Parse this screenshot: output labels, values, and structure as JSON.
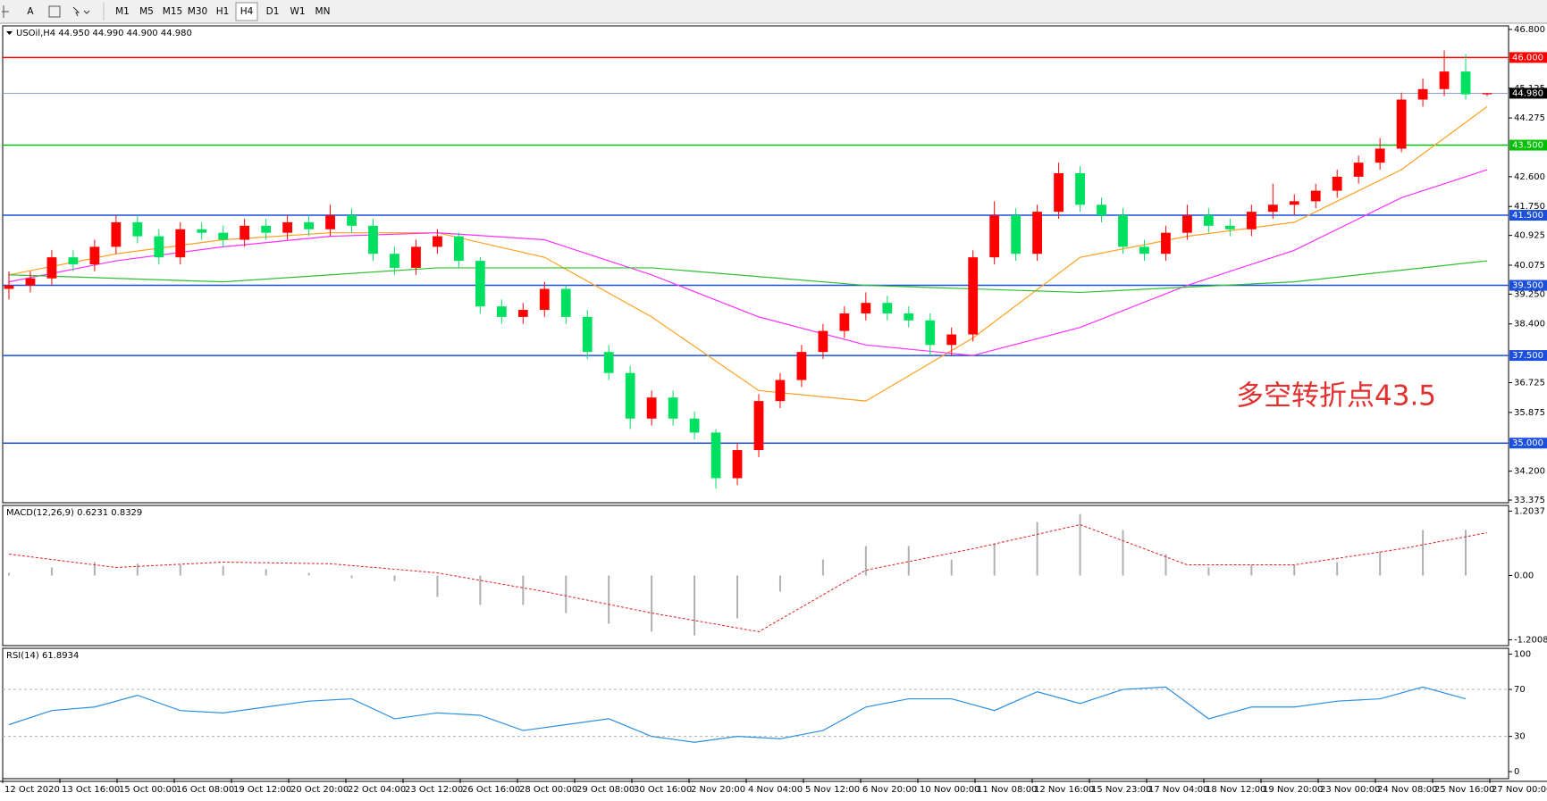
{
  "toolbar": {
    "font_button": "A",
    "timeframes": [
      "M1",
      "M5",
      "M15",
      "M30",
      "H1",
      "H4",
      "D1",
      "W1",
      "MN"
    ],
    "active": "H4"
  },
  "time_axis": {
    "labels": [
      "12 Oct 2020",
      "13 Oct 16:00",
      "15 Oct 00:00",
      "16 Oct 08:00",
      "19 Oct 12:00",
      "20 Oct 20:00",
      "22 Oct 04:00",
      "23 Oct 12:00",
      "26 Oct 16:00",
      "28 Oct 00:00",
      "29 Oct 08:00",
      "30 Oct 16:00",
      "2 Nov 20:00",
      "4 Nov 04:00",
      "5 Nov 12:00",
      "6 Nov 20:00",
      "10 Nov 00:00",
      "11 Nov 08:00",
      "12 Nov 16:00",
      "15 Nov 23:00",
      "17 Nov 04:00",
      "18 Nov 12:00",
      "19 Nov 20:00",
      "23 Nov 00:00",
      "24 Nov 08:00",
      "25 Nov 16:00",
      "27 Nov 00:00"
    ]
  },
  "chart_data": [
    {
      "type": "candlestick",
      "title": "USOil,H4 44.950 44.990 44.900 44.980",
      "up_color": "#ff0000",
      "down_color": "#00e060",
      "xlim": [
        0,
        69
      ],
      "ohlc": [
        [
          39.4,
          39.9,
          39.1,
          39.5
        ],
        [
          39.5,
          39.9,
          39.3,
          39.7
        ],
        [
          39.7,
          40.5,
          39.5,
          40.3
        ],
        [
          40.3,
          40.5,
          39.9,
          40.1
        ],
        [
          40.1,
          40.8,
          39.9,
          40.6
        ],
        [
          40.6,
          41.5,
          40.4,
          41.3
        ],
        [
          41.3,
          41.5,
          40.7,
          40.9
        ],
        [
          40.9,
          41.1,
          40.1,
          40.3
        ],
        [
          40.3,
          41.3,
          40.1,
          41.1
        ],
        [
          41.1,
          41.3,
          40.8,
          41.0
        ],
        [
          41.0,
          41.2,
          40.6,
          40.8
        ],
        [
          40.8,
          41.4,
          40.6,
          41.2
        ],
        [
          41.2,
          41.4,
          40.8,
          41.0
        ],
        [
          41.0,
          41.5,
          40.8,
          41.3
        ],
        [
          41.3,
          41.5,
          40.9,
          41.1
        ],
        [
          41.1,
          41.8,
          40.9,
          41.5
        ],
        [
          41.5,
          41.7,
          41.0,
          41.2
        ],
        [
          41.2,
          41.4,
          40.2,
          40.4
        ],
        [
          40.4,
          40.6,
          39.8,
          40.0
        ],
        [
          40.0,
          40.8,
          39.8,
          40.6
        ],
        [
          40.6,
          41.1,
          40.4,
          40.9
        ],
        [
          40.9,
          41.0,
          40.0,
          40.2
        ],
        [
          40.2,
          40.3,
          38.7,
          38.9
        ],
        [
          38.9,
          39.1,
          38.4,
          38.6
        ],
        [
          38.6,
          39.0,
          38.4,
          38.8
        ],
        [
          38.8,
          39.6,
          38.6,
          39.4
        ],
        [
          39.4,
          39.5,
          38.4,
          38.6
        ],
        [
          38.6,
          38.8,
          37.4,
          37.6
        ],
        [
          37.6,
          37.8,
          36.8,
          37.0
        ],
        [
          37.0,
          37.2,
          35.4,
          35.7
        ],
        [
          35.7,
          36.5,
          35.5,
          36.3
        ],
        [
          36.3,
          36.5,
          35.5,
          35.7
        ],
        [
          35.7,
          35.9,
          35.1,
          35.3
        ],
        [
          35.3,
          35.4,
          33.7,
          34.0
        ],
        [
          34.0,
          35.0,
          33.8,
          34.8
        ],
        [
          34.8,
          36.4,
          34.6,
          36.2
        ],
        [
          36.2,
          37.0,
          36.0,
          36.8
        ],
        [
          36.8,
          37.8,
          36.6,
          37.6
        ],
        [
          37.6,
          38.4,
          37.4,
          38.2
        ],
        [
          38.2,
          38.9,
          38.0,
          38.7
        ],
        [
          38.7,
          39.3,
          38.5,
          39.0
        ],
        [
          39.0,
          39.2,
          38.5,
          38.7
        ],
        [
          38.7,
          38.9,
          38.3,
          38.5
        ],
        [
          38.5,
          38.7,
          37.5,
          37.8
        ],
        [
          37.8,
          38.3,
          37.5,
          38.1
        ],
        [
          38.1,
          40.5,
          37.9,
          40.3
        ],
        [
          40.3,
          41.9,
          40.1,
          41.5
        ],
        [
          41.5,
          41.7,
          40.2,
          40.4
        ],
        [
          40.4,
          41.8,
          40.2,
          41.6
        ],
        [
          41.6,
          43.0,
          41.4,
          42.7
        ],
        [
          42.7,
          42.9,
          41.6,
          41.8
        ],
        [
          41.8,
          42.0,
          41.3,
          41.5
        ],
        [
          41.5,
          41.7,
          40.4,
          40.6
        ],
        [
          40.6,
          40.8,
          40.2,
          40.4
        ],
        [
          40.4,
          41.2,
          40.2,
          41.0
        ],
        [
          41.0,
          41.8,
          40.8,
          41.5
        ],
        [
          41.5,
          41.7,
          41.0,
          41.2
        ],
        [
          41.2,
          41.4,
          40.9,
          41.1
        ],
        [
          41.1,
          41.8,
          40.9,
          41.6
        ],
        [
          41.6,
          42.4,
          41.4,
          41.8
        ],
        [
          41.8,
          42.1,
          41.5,
          41.9
        ],
        [
          41.9,
          42.4,
          41.7,
          42.2
        ],
        [
          42.2,
          42.8,
          42.0,
          42.6
        ],
        [
          42.6,
          43.2,
          42.4,
          43.0
        ],
        [
          43.0,
          43.7,
          42.8,
          43.4
        ],
        [
          43.4,
          45.0,
          43.3,
          44.8
        ],
        [
          44.8,
          45.4,
          44.6,
          45.1
        ],
        [
          45.1,
          46.2,
          44.9,
          45.6
        ],
        [
          45.6,
          46.1,
          44.8,
          44.95
        ],
        [
          44.95,
          44.99,
          44.9,
          44.98
        ]
      ],
      "series": [
        {
          "color": "#ffa020",
          "x": [
            0,
            5,
            10,
            15,
            20,
            25,
            30,
            35,
            40,
            45,
            50,
            55,
            60,
            65,
            69
          ],
          "values": [
            39.8,
            40.4,
            40.8,
            41.0,
            41.0,
            40.3,
            38.6,
            36.5,
            36.2,
            38.0,
            40.3,
            40.9,
            41.3,
            42.8,
            44.6
          ]
        },
        {
          "color": "#ff30ff",
          "x": [
            0,
            5,
            10,
            15,
            20,
            25,
            30,
            35,
            40,
            45,
            50,
            55,
            60,
            65,
            69
          ],
          "values": [
            39.6,
            40.2,
            40.6,
            40.9,
            41.0,
            40.8,
            39.8,
            38.6,
            37.8,
            37.5,
            38.3,
            39.5,
            40.5,
            42.0,
            42.8
          ]
        },
        {
          "color": "#30c030",
          "x": [
            0,
            10,
            20,
            30,
            40,
            50,
            60,
            69
          ],
          "values": [
            39.8,
            39.6,
            40.0,
            40.0,
            39.5,
            39.3,
            39.6,
            40.2
          ]
        }
      ],
      "ylim": [
        33.375,
        46.8
      ],
      "yticks": [
        {
          "value": 46.8,
          "label": "46.800"
        },
        {
          "value": 45.125,
          "label": "45.125"
        },
        {
          "value": 44.275,
          "label": "44.275"
        },
        {
          "value": 42.6,
          "label": "42.600"
        },
        {
          "value": 41.75,
          "label": "41.750"
        },
        {
          "value": 40.925,
          "label": "40.925"
        },
        {
          "value": 40.075,
          "label": "40.075"
        },
        {
          "value": 39.25,
          "label": "39.250"
        },
        {
          "value": 38.4,
          "label": "38.400"
        },
        {
          "value": 36.725,
          "label": "36.725"
        },
        {
          "value": 35.875,
          "label": "35.875"
        },
        {
          "value": 34.2,
          "label": "34.200"
        },
        {
          "value": 33.375,
          "label": "33.375"
        }
      ],
      "levels": [
        {
          "value": 46,
          "label": "46.000",
          "color": "#ff0000"
        },
        {
          "value": 43.5,
          "label": "43.500",
          "color": "#00c000"
        },
        {
          "value": 41.5,
          "label": "41.500",
          "color": "#1a4fe0"
        },
        {
          "value": 39.5,
          "label": "39.500",
          "color": "#1a4fe0"
        },
        {
          "value": 37.5,
          "label": "37.500",
          "color": "#1a4fe0"
        },
        {
          "value": 35,
          "label": "35.000",
          "color": "#1a4fe0"
        }
      ],
      "current": {
        "value": 44.98,
        "label": "44.980"
      },
      "annotation": "多空转折点43.5"
    },
    {
      "type": "macd",
      "title": "MACD(12,26,9) 0.6231 0.8329",
      "xlim": [
        0,
        69
      ],
      "histogram": {
        "color": "#b0b0b0",
        "x": [
          0,
          2,
          4,
          6,
          8,
          10,
          12,
          14,
          16,
          18,
          20,
          22,
          24,
          26,
          28,
          30,
          32,
          34,
          36,
          38,
          40,
          42,
          44,
          46,
          48,
          50,
          52,
          54,
          56,
          58,
          60,
          62,
          64,
          66,
          68
        ],
        "values": [
          0.05,
          0.15,
          0.25,
          0.22,
          0.2,
          0.18,
          0.12,
          0.05,
          -0.05,
          -0.1,
          -0.4,
          -0.55,
          -0.55,
          -0.7,
          -0.9,
          -1.05,
          -1.12,
          -0.8,
          -0.3,
          0.3,
          0.55,
          0.55,
          0.3,
          0.6,
          1.0,
          1.15,
          0.85,
          0.4,
          0.15,
          0.2,
          0.2,
          0.25,
          0.45,
          0.85,
          0.85
        ]
      },
      "signal": {
        "color": "#e02020",
        "x": [
          0,
          5,
          10,
          15,
          20,
          25,
          30,
          35,
          40,
          45,
          50,
          55,
          60,
          65,
          69
        ],
        "values": [
          0.4,
          0.15,
          0.25,
          0.22,
          0.05,
          -0.3,
          -0.7,
          -1.05,
          0.1,
          0.5,
          0.95,
          0.2,
          0.2,
          0.5,
          0.8
        ]
      },
      "ylim": [
        -1.31,
        1.31
      ],
      "yticks": [
        {
          "value": 1.2037,
          "label": "1.2037"
        },
        {
          "value": 0,
          "label": "0.00"
        },
        {
          "value": -1.2008,
          "label": "-1.2008"
        }
      ]
    },
    {
      "type": "line",
      "title": "RSI(14) 61.8934",
      "xlim": [
        0,
        69
      ],
      "color": "#2c8fe0",
      "x": [
        0,
        2,
        4,
        6,
        8,
        10,
        12,
        14,
        16,
        18,
        20,
        22,
        24,
        26,
        28,
        30,
        32,
        34,
        36,
        38,
        40,
        42,
        44,
        46,
        48,
        50,
        52,
        54,
        56,
        58,
        60,
        62,
        64,
        66,
        68
      ],
      "values": [
        40,
        52,
        55,
        65,
        52,
        50,
        55,
        60,
        62,
        45,
        50,
        48,
        35,
        40,
        45,
        30,
        25,
        30,
        28,
        35,
        55,
        62,
        62,
        52,
        68,
        58,
        70,
        72,
        45,
        55,
        55,
        60,
        62,
        72,
        62
      ],
      "ylim": [
        -6,
        105
      ],
      "yticks": [
        100,
        70,
        30,
        0
      ],
      "grid_levels": [
        70,
        30
      ]
    }
  ]
}
